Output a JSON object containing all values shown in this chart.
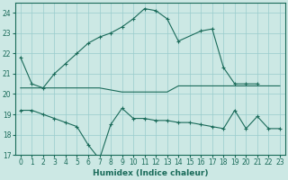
{
  "xlabel": "Humidex (Indice chaleur)",
  "bg_color": "#cce8e4",
  "line_color": "#1a6b5a",
  "grid_color": "#99cccc",
  "ylim": [
    17,
    24.5
  ],
  "xlim": [
    -0.5,
    23.5
  ],
  "yticks": [
    17,
    18,
    19,
    20,
    21,
    22,
    23,
    24
  ],
  "xticks": [
    0,
    1,
    2,
    3,
    4,
    5,
    6,
    7,
    8,
    9,
    10,
    11,
    12,
    13,
    14,
    15,
    16,
    17,
    18,
    19,
    20,
    21,
    22,
    23
  ],
  "line1_x": [
    0,
    1,
    2,
    3,
    4,
    5,
    6,
    7,
    8,
    9,
    10,
    11,
    12,
    13,
    14,
    16,
    17,
    18,
    19,
    20,
    21
  ],
  "line1_y": [
    21.8,
    20.5,
    20.3,
    21.0,
    21.5,
    22.0,
    22.5,
    22.8,
    23.0,
    23.3,
    23.7,
    24.2,
    24.1,
    23.7,
    22.6,
    23.1,
    23.2,
    21.3,
    20.5,
    20.5,
    20.5
  ],
  "line2_x": [
    0,
    1,
    2,
    3,
    4,
    5,
    6,
    7,
    8,
    9,
    10,
    11,
    12,
    13,
    14,
    15,
    16,
    17,
    18,
    19,
    20,
    21,
    22,
    23
  ],
  "line2_y": [
    20.3,
    20.3,
    20.3,
    20.3,
    20.3,
    20.3,
    20.3,
    20.3,
    20.2,
    20.1,
    20.1,
    20.1,
    20.1,
    20.1,
    20.4,
    20.4,
    20.4,
    20.4,
    20.4,
    20.4,
    20.4,
    20.4,
    20.4,
    20.4
  ],
  "line3_x": [
    0,
    1,
    2,
    3,
    4,
    5,
    6,
    7,
    8,
    9,
    10,
    11,
    12,
    13,
    14,
    15,
    16,
    17,
    18,
    19,
    20,
    21,
    22,
    23
  ],
  "line3_y": [
    19.2,
    19.2,
    19.0,
    18.8,
    18.6,
    18.4,
    17.5,
    16.8,
    18.5,
    19.3,
    18.8,
    18.8,
    18.7,
    18.7,
    18.6,
    18.6,
    18.5,
    18.4,
    18.3,
    19.2,
    18.3,
    18.9,
    18.3,
    18.3
  ],
  "marker": "+",
  "markersize": 3,
  "linewidth": 0.8,
  "tick_fontsize": 5.5,
  "xlabel_fontsize": 6.5
}
